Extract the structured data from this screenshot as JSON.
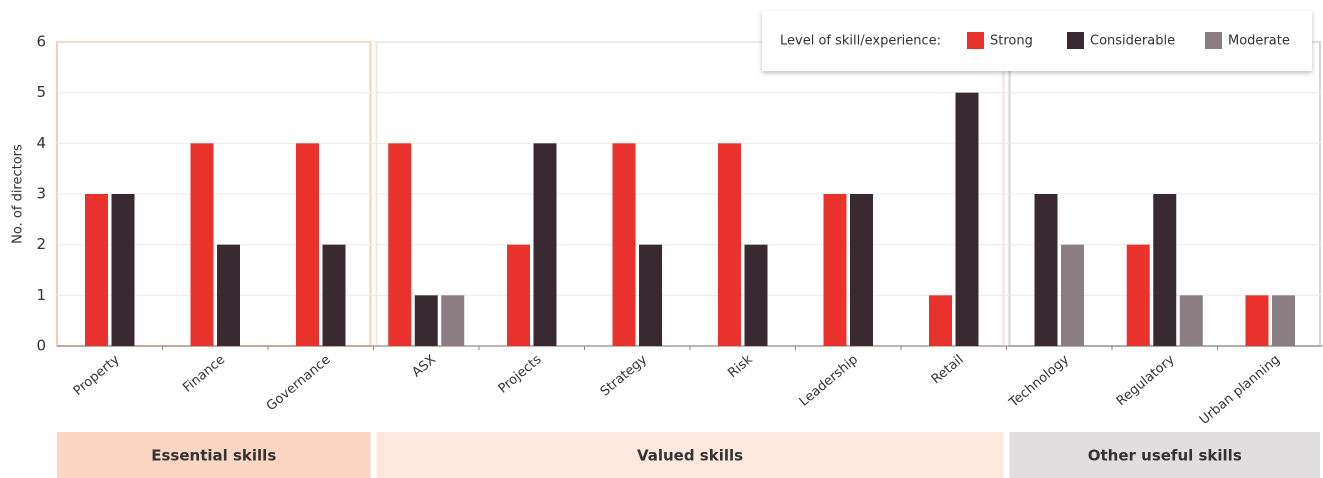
{
  "chart_data": {
    "type": "bar",
    "y_label": "No. of directors",
    "legend_title": "Level of skill/experience:",
    "categories": [
      "Property",
      "Finance",
      "Governance",
      "ASX",
      "Projects",
      "Strategy",
      "Risk",
      "Leadership",
      "Retail",
      "Technology",
      "Regulatory",
      "Urban planning"
    ],
    "groups": [
      "Essential skills",
      "Valued skills",
      "Other useful skills"
    ],
    "series": [
      {
        "name": "Strong",
        "color": "#e8322b",
        "values": [
          3,
          4,
          4,
          4,
          2,
          4,
          4,
          3,
          1,
          null,
          2,
          1
        ]
      },
      {
        "name": "Considerable",
        "color": "#392a31",
        "values": [
          3,
          2,
          2,
          1,
          4,
          2,
          2,
          3,
          5,
          3,
          3,
          null
        ]
      },
      {
        "name": "Moderate",
        "color": "#8b7e82",
        "values": [
          null,
          null,
          null,
          1,
          null,
          null,
          null,
          null,
          null,
          2,
          1,
          1
        ]
      }
    ],
    "ylim": [
      0,
      6
    ],
    "yticks": [
      0,
      1,
      2,
      3,
      4,
      5,
      6
    ],
    "grid": true,
    "legend": "top-right"
  }
}
